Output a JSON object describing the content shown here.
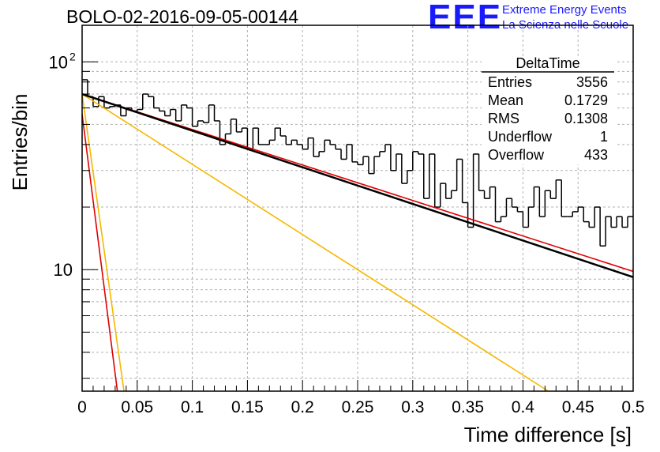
{
  "header": {
    "title": "BOLO-02-2016-09-05-00144",
    "logo": "EEE",
    "tagline_1": "Extreme Energy Events",
    "tagline_2": "La Scienza nelle Scuole"
  },
  "stats_box": {
    "name": "DeltaTime",
    "rows": [
      {
        "label": "Entries",
        "value": "3556"
      },
      {
        "label": "Mean",
        "value": "0.1729"
      },
      {
        "label": "RMS",
        "value": "0.1308"
      },
      {
        "label": "Underflow",
        "value": "1"
      },
      {
        "label": "Overflow",
        "value": "433"
      }
    ]
  },
  "colors": {
    "histogram": "#000000",
    "fit_total": "#000000",
    "fit_red": "#e00000",
    "fit_yellow": "#f5b800",
    "grid": "#b0b0b0",
    "logo": "#1a1aff"
  },
  "chart_data": {
    "type": "histogram",
    "xlabel": "Time difference [s]",
    "ylabel": "Entries/bin",
    "xlim": [
      0,
      0.5
    ],
    "ylim": [
      2.6,
      150
    ],
    "yscale": "log",
    "grid": true,
    "x_ticks": [
      "0",
      "0.05",
      "0.1",
      "0.15",
      "0.2",
      "0.25",
      "0.3",
      "0.35",
      "0.4",
      "0.45",
      "0.5"
    ],
    "y_ticks": [
      {
        "value": 10,
        "label": "10"
      },
      {
        "value": 100,
        "label": "10",
        "exponent": "2"
      }
    ],
    "bin_width": 0.005,
    "bin_values": [
      82,
      68,
      61,
      68,
      60,
      61,
      62,
      55,
      60,
      58,
      59,
      70,
      68,
      60,
      58,
      55,
      59,
      52,
      62,
      60,
      49,
      52,
      51,
      62,
      52,
      40,
      45,
      53,
      46,
      48,
      38,
      48,
      40,
      40,
      42,
      48,
      44,
      40,
      42,
      40,
      38,
      43,
      35,
      37,
      42,
      40,
      38,
      34,
      40,
      33,
      32,
      35,
      29,
      35,
      37,
      40,
      30,
      36,
      26,
      30,
      37,
      36,
      22,
      36,
      20,
      26,
      22,
      24,
      34,
      21,
      16,
      36,
      24,
      22,
      25,
      17,
      18,
      22,
      20,
      19,
      16,
      20,
      25,
      18,
      24,
      22,
      27,
      18,
      18,
      19,
      20,
      17,
      16,
      20,
      13,
      18,
      16,
      18,
      16,
      18,
      15,
      17,
      20,
      17,
      18,
      10,
      19,
      17,
      14,
      23,
      16,
      18,
      14,
      15,
      14,
      14,
      22,
      10,
      21,
      13,
      15,
      14,
      11,
      18,
      18,
      17,
      20,
      15,
      16,
      15,
      13,
      14,
      15,
      12,
      15,
      11,
      10,
      7,
      13,
      11,
      12,
      9,
      17,
      10,
      15,
      15,
      8,
      11,
      12,
      11,
      13,
      9,
      10,
      10,
      11,
      12,
      12,
      12,
      13,
      15,
      11,
      11,
      12,
      12,
      14,
      11,
      13,
      10,
      11,
      12,
      11,
      13,
      10,
      11,
      12,
      9,
      13,
      10,
      11,
      12,
      10,
      11,
      10,
      9,
      12,
      10,
      11,
      10,
      9,
      11,
      10,
      9,
      12,
      10,
      9,
      10,
      11,
      10,
      9,
      11
    ],
    "fit_lines": [
      {
        "color": "black",
        "points": [
          [
            0.0,
            70
          ],
          [
            0.5,
            9.2
          ]
        ]
      },
      {
        "color": "red",
        "points": [
          [
            0.0,
            70
          ],
          [
            0.5,
            9.8
          ]
        ]
      },
      {
        "color": "red",
        "points": [
          [
            0.0,
            56
          ],
          [
            0.032,
            2.6
          ]
        ]
      },
      {
        "color": "yellow",
        "points": [
          [
            0.0,
            70
          ],
          [
            0.038,
            2.6
          ]
        ]
      },
      {
        "color": "yellow",
        "points": [
          [
            0.0,
            70
          ],
          [
            0.423,
            2.6
          ]
        ]
      }
    ]
  }
}
